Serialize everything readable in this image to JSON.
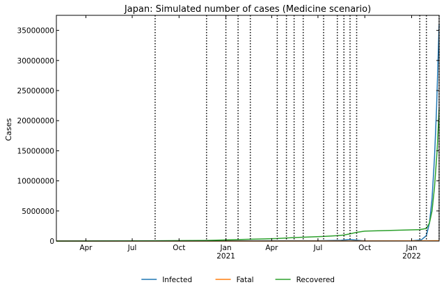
{
  "chart_data": {
    "type": "line",
    "title": "Japan: Simulated number of cases (Medicine scenario)",
    "xlabel": "",
    "ylabel": "Cases",
    "x_type": "date",
    "xlim": [
      "2020-02-03",
      "2022-02-24"
    ],
    "ylim": [
      0,
      37500000
    ],
    "y_ticks": [
      0,
      5000000,
      10000000,
      15000000,
      20000000,
      25000000,
      30000000,
      35000000
    ],
    "x_ticks": [
      {
        "date": "2020-04-01",
        "label": "Apr",
        "sub": ""
      },
      {
        "date": "2020-07-01",
        "label": "Jul",
        "sub": ""
      },
      {
        "date": "2020-10-01",
        "label": "Oct",
        "sub": ""
      },
      {
        "date": "2021-01-01",
        "label": "Jan",
        "sub": "2021"
      },
      {
        "date": "2021-04-01",
        "label": "Apr",
        "sub": ""
      },
      {
        "date": "2021-07-01",
        "label": "Jul",
        "sub": ""
      },
      {
        "date": "2021-10-01",
        "label": "Oct",
        "sub": ""
      },
      {
        "date": "2022-01-01",
        "label": "Jan",
        "sub": "2022"
      }
    ],
    "grid": false,
    "legend_placement": "bottom-center",
    "phase_change_dates": [
      "2020-08-15",
      "2020-11-24",
      "2021-01-01",
      "2021-01-25",
      "2021-02-18",
      "2021-04-12",
      "2021-04-30",
      "2021-05-15",
      "2021-06-02",
      "2021-07-12",
      "2021-08-08",
      "2021-08-21",
      "2021-09-02",
      "2021-09-15",
      "2022-01-17",
      "2022-01-30",
      "2022-02-24"
    ],
    "series": [
      {
        "name": "Infected",
        "color": "#1f77b4",
        "points": [
          [
            "2020-02-03",
            0
          ],
          [
            "2021-07-01",
            50000
          ],
          [
            "2021-08-15",
            120000
          ],
          [
            "2021-09-01",
            250000
          ],
          [
            "2021-09-15",
            150000
          ],
          [
            "2021-10-01",
            40000
          ],
          [
            "2022-01-01",
            30000
          ],
          [
            "2022-01-20",
            200000
          ],
          [
            "2022-01-30",
            900000
          ],
          [
            "2022-02-05",
            3000000
          ],
          [
            "2022-02-10",
            7000000
          ],
          [
            "2022-02-15",
            14000000
          ],
          [
            "2022-02-19",
            22000000
          ],
          [
            "2022-02-24",
            36000000
          ]
        ]
      },
      {
        "name": "Fatal",
        "color": "#ff7f0e",
        "points": [
          [
            "2020-02-03",
            0
          ],
          [
            "2021-01-01",
            5000
          ],
          [
            "2022-01-01",
            20000
          ],
          [
            "2022-02-24",
            60000
          ]
        ]
      },
      {
        "name": "Recovered",
        "color": "#2ca02c",
        "points": [
          [
            "2020-02-03",
            0
          ],
          [
            "2020-08-15",
            50000
          ],
          [
            "2020-11-24",
            100000
          ],
          [
            "2021-01-01",
            180000
          ],
          [
            "2021-02-18",
            300000
          ],
          [
            "2021-04-12",
            420000
          ],
          [
            "2021-05-15",
            580000
          ],
          [
            "2021-07-12",
            760000
          ],
          [
            "2021-08-08",
            900000
          ],
          [
            "2021-08-21",
            1000000
          ],
          [
            "2021-09-02",
            1200000
          ],
          [
            "2021-09-15",
            1450000
          ],
          [
            "2021-10-01",
            1650000
          ],
          [
            "2022-01-17",
            1900000
          ],
          [
            "2022-01-30",
            2100000
          ],
          [
            "2022-02-05",
            3000000
          ],
          [
            "2022-02-10",
            5000000
          ],
          [
            "2022-02-15",
            9000000
          ],
          [
            "2022-02-20",
            15000000
          ],
          [
            "2022-02-24",
            22000000
          ]
        ]
      }
    ]
  }
}
